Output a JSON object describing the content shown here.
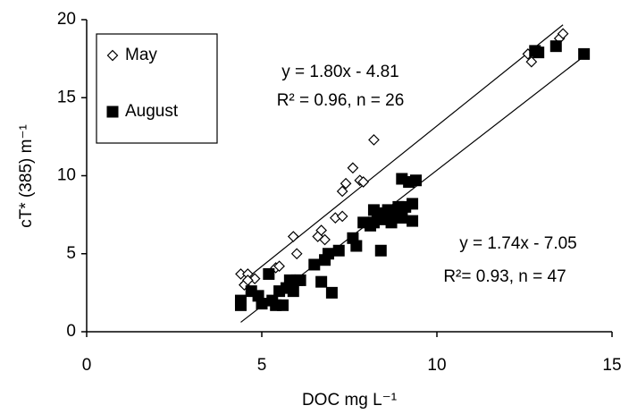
{
  "chart_data": {
    "type": "scatter",
    "x_label": "DOC  mg L⁻¹",
    "y_label": "cT* (385)  m⁻¹",
    "xlim": [
      0,
      15
    ],
    "xticks": [
      0,
      5,
      10,
      15
    ],
    "ylim": [
      0,
      20
    ],
    "yticks": [
      0,
      5,
      10,
      15,
      20
    ],
    "grid": false,
    "legend": "upper left",
    "series": [
      {
        "name": "May",
        "color": "#000000",
        "marker": "diamond",
        "x": [
          4.4,
          4.5,
          4.6,
          4.8,
          5.4,
          5.5,
          5.9,
          6.0,
          6.6,
          6.7,
          6.8,
          7.1,
          7.3,
          7.3,
          7.4,
          7.6,
          7.8,
          7.9,
          8.2,
          8.3,
          12.6,
          12.7,
          12.8,
          13.5,
          13.6,
          4.6
        ],
        "values": [
          3.7,
          3.0,
          3.7,
          3.4,
          4.1,
          4.2,
          6.1,
          5.0,
          6.1,
          6.5,
          5.9,
          7.3,
          7.4,
          9.0,
          9.5,
          10.5,
          9.7,
          9.6,
          12.3,
          7.3,
          17.8,
          17.3,
          17.9,
          18.8,
          19.1,
          3.3
        ]
      },
      {
        "name": "August",
        "color": "#000000",
        "marker": "square",
        "x": [
          4.4,
          4.4,
          4.7,
          4.9,
          5.0,
          5.2,
          5.3,
          5.4,
          5.5,
          5.6,
          5.7,
          5.8,
          5.9,
          6.0,
          6.5,
          6.7,
          6.8,
          6.9,
          7.0,
          7.2,
          7.6,
          7.7,
          7.9,
          8.1,
          8.2,
          8.3,
          8.4,
          8.5,
          8.6,
          8.8,
          8.9,
          9.0,
          9.0,
          9.1,
          9.2,
          9.3,
          9.3,
          9.4,
          8.2,
          8.5,
          8.7,
          9.0,
          12.8,
          12.9,
          13.4,
          14.2,
          6.1
        ],
        "values": [
          1.7,
          2.0,
          2.6,
          2.3,
          1.8,
          3.7,
          2.0,
          1.7,
          2.6,
          1.7,
          2.8,
          3.3,
          2.6,
          3.3,
          4.3,
          3.2,
          4.6,
          5.0,
          2.5,
          5.2,
          6.0,
          5.5,
          7.0,
          6.8,
          7.8,
          7.5,
          5.2,
          7.2,
          7.8,
          7.5,
          8.0,
          7.3,
          9.8,
          8.0,
          9.6,
          8.2,
          7.1,
          9.7,
          7.0,
          7.6,
          7.0,
          7.7,
          18.0,
          17.9,
          18.3,
          17.8,
          3.3
        ]
      }
    ],
    "fits": [
      {
        "slope": 1.8,
        "intercept": -4.81,
        "xrange": [
          4.4,
          13.6
        ]
      },
      {
        "slope": 1.74,
        "intercept": -7.05,
        "xrange": [
          4.4,
          14.2
        ]
      }
    ],
    "annotations": [
      "y = 1.80x - 4.81",
      "R² = 0.96, n = 26",
      "y = 1.74x - 7.05",
      "R²= 0.93, n = 47"
    ]
  }
}
